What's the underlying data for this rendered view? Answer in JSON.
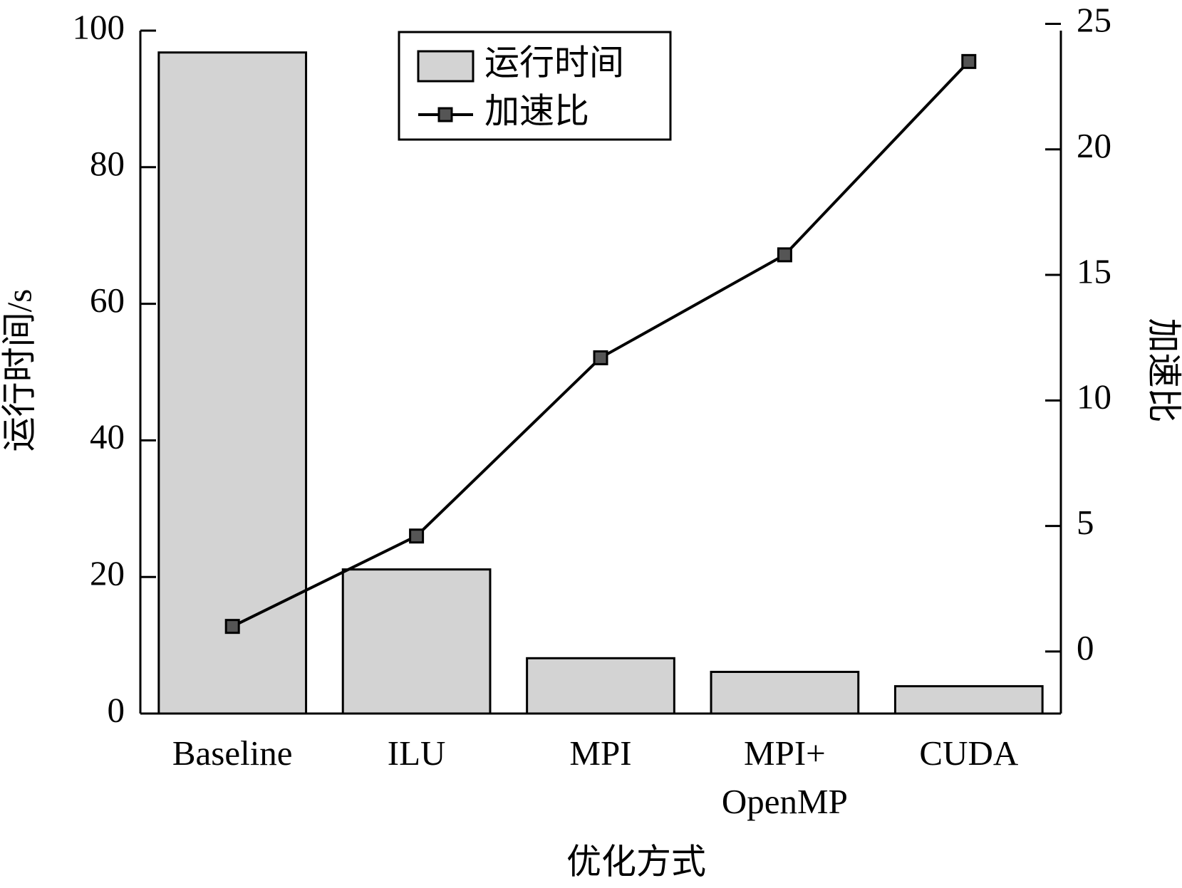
{
  "chart_data": {
    "type": "bar_line",
    "categories": [
      "Baseline",
      "ILU",
      "MPI",
      "MPI+\nOpenMP",
      "CUDA"
    ],
    "x_label": "优化方式",
    "y_label": "运行时间/s",
    "y2_label": "加速比",
    "series": [
      {
        "name": "运行时间",
        "type": "bar",
        "color": "#d3d3d3",
        "values": [
          96.8,
          21.1,
          8.1,
          6.1,
          4.0
        ]
      },
      {
        "name": "加速比",
        "type": "line",
        "color": "#555555",
        "axis": "y2",
        "values": [
          1.0,
          4.6,
          11.7,
          15.8,
          23.5
        ]
      }
    ],
    "ylim": [
      0,
      100
    ],
    "yticks": [
      0,
      20,
      40,
      60,
      80,
      100
    ],
    "y2lim": [
      -2.47,
      24.73
    ],
    "y2ticks": [
      0,
      5,
      10,
      15,
      20,
      25
    ],
    "legend": "upper center",
    "grid": false
  }
}
